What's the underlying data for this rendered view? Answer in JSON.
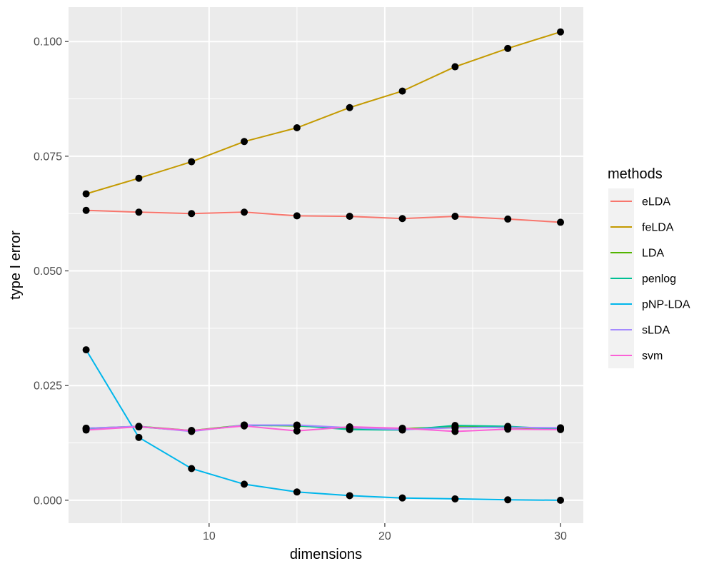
{
  "chart_data": {
    "type": "line",
    "title": "",
    "xlabel": "dimensions",
    "ylabel": "type I error",
    "xlim": [
      2,
      31.3
    ],
    "ylim": [
      -0.005,
      0.1075
    ],
    "x_ticks": [
      10,
      20,
      30
    ],
    "x_tick_labels": [
      "10",
      "20",
      "30"
    ],
    "y_ticks": [
      0.0,
      0.025,
      0.05,
      0.075,
      0.1
    ],
    "y_tick_labels": [
      "0.000",
      "0.025",
      "0.050",
      "0.075",
      "0.100"
    ],
    "grid": true,
    "legend": {
      "title": "methods",
      "position": "right"
    },
    "x": [
      3,
      6,
      9,
      12,
      15,
      18,
      21,
      24,
      27,
      30
    ],
    "series": [
      {
        "name": "eLDA",
        "color": "#F8766D",
        "values": [
          0.0632,
          0.0628,
          0.0625,
          0.0628,
          0.062,
          0.0619,
          0.0614,
          0.0619,
          0.0613,
          0.0606
        ]
      },
      {
        "name": "feLDA",
        "color": "#C49A00",
        "values": [
          0.0668,
          0.0702,
          0.0738,
          0.0782,
          0.0812,
          0.0856,
          0.0892,
          0.0945,
          0.0985,
          0.1021
        ]
      },
      {
        "name": "LDA",
        "color": "#53B400",
        "values": [
          0.0157,
          0.0161,
          0.0152,
          0.0164,
          0.0162,
          0.0157,
          0.0156,
          0.016,
          0.0158,
          0.0157
        ]
      },
      {
        "name": "penlog",
        "color": "#00C094",
        "values": [
          0.0156,
          0.016,
          0.0151,
          0.0163,
          0.0163,
          0.0154,
          0.0153,
          0.0163,
          0.0161,
          0.0155
        ]
      },
      {
        "name": "pNP-LDA",
        "color": "#00B6EB",
        "values": [
          0.0328,
          0.0137,
          0.0069,
          0.0035,
          0.0018,
          0.001,
          0.0005,
          0.0003,
          0.0001,
          0.0
        ]
      },
      {
        "name": "sLDA",
        "color": "#A58AFF",
        "values": [
          0.0157,
          0.0161,
          0.015,
          0.0164,
          0.0164,
          0.0158,
          0.0154,
          0.0158,
          0.0159,
          0.0158
        ]
      },
      {
        "name": "svm",
        "color": "#FB61D7",
        "values": [
          0.0153,
          0.016,
          0.0152,
          0.0162,
          0.0151,
          0.016,
          0.0157,
          0.015,
          0.0155,
          0.0154
        ]
      }
    ]
  }
}
